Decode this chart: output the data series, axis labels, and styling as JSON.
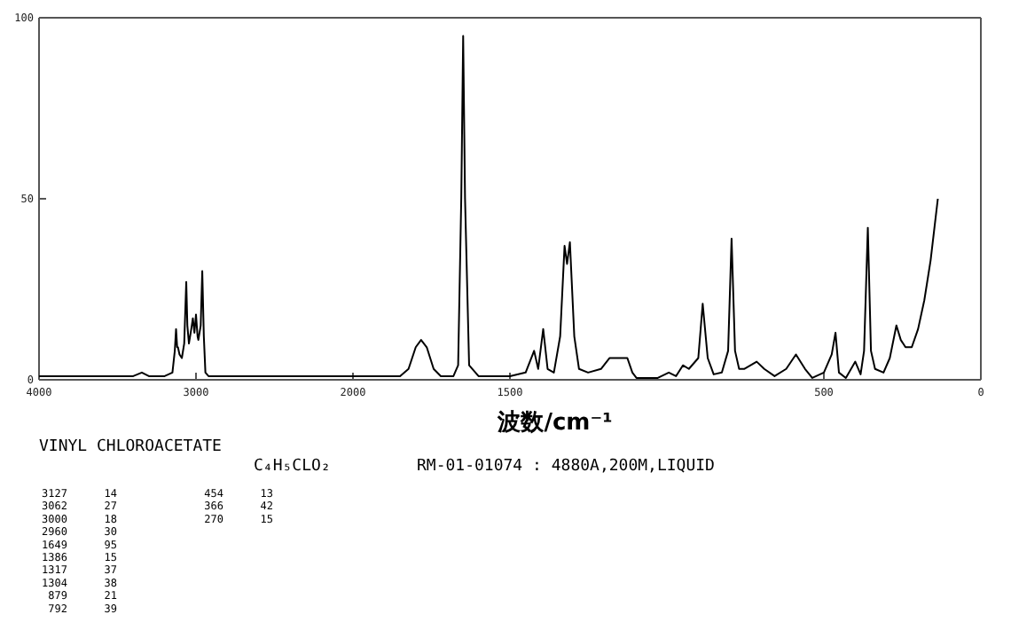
{
  "chart_data": [
    {
      "type": "line",
      "title": "VINYL CHLOROACETATE",
      "subtitle": "C₄H₅CLO₂",
      "xlim": [
        4000,
        2000
      ],
      "ylim": [
        0,
        100
      ],
      "xticks": [
        4000,
        3000,
        2000
      ],
      "yticks": [
        0,
        50,
        100
      ],
      "marker": "none",
      "line_style": "solid",
      "series": [
        {
          "color": "#000000",
          "x": [
            4000,
            3700,
            3400,
            3345,
            3300,
            3200,
            3150,
            3135,
            3127,
            3120,
            3115,
            3105,
            3090,
            3075,
            3062,
            3055,
            3045,
            3030,
            3020,
            3010,
            3000,
            2990,
            2985,
            2970,
            2960,
            2950,
            2940,
            2920,
            2850,
            2600,
            2300,
            2000
          ],
          "values": [
            1,
            1,
            1,
            2,
            1,
            1,
            2,
            8,
            14,
            9,
            9,
            7,
            6,
            10,
            27,
            15,
            10,
            14,
            17,
            13,
            18,
            12,
            11,
            15,
            30,
            12,
            2,
            1,
            1,
            1,
            1,
            1
          ]
        }
      ],
      "annotations": [
        "RM-01-01074 : 4880A,200M,LIQUID",
        "3127 14 454 13",
        "3062 27 366 42",
        "3000 18 270 15",
        "2960 30",
        "1649 95",
        "1386 15",
        "1317 37",
        "1304 38",
        "879 21",
        "792 39"
      ]
    },
    {
      "type": "line",
      "xlabel": "波数/cm⁻¹",
      "xlim": [
        2000,
        0
      ],
      "ylim": [
        0,
        100
      ],
      "xticks": [
        1500,
        500,
        0
      ],
      "tick_labels": "x",
      "marker": "none",
      "line_style": "solid",
      "series": [
        {
          "color": "#000000",
          "x": [
            2000,
            1850,
            1823,
            1800,
            1783,
            1765,
            1743,
            1720,
            1680,
            1665,
            1655,
            1649,
            1643,
            1630,
            1600,
            1500,
            1450,
            1423,
            1410,
            1394,
            1380,
            1360,
            1340,
            1326,
            1318,
            1309,
            1295,
            1280,
            1251,
            1210,
            1183,
            1155,
            1126,
            1110,
            1097,
            1029,
            994,
            971,
            949,
            930,
            900,
            886,
            870,
            851,
            825,
            805,
            794,
            783,
            770,
            754,
            714,
            690,
            657,
            620,
            589,
            560,
            537,
            500,
            475,
            463,
            452,
            430,
            400,
            383,
            372,
            360,
            350,
            337,
            310,
            290,
            269,
            255,
            240,
            220,
            200,
            180,
            160,
            137
          ],
          "values": [
            1,
            1,
            3,
            9,
            11,
            9,
            3,
            1,
            1,
            4,
            50,
            95,
            50,
            4,
            1,
            1,
            2,
            8,
            3,
            14,
            3,
            2,
            12,
            37,
            32,
            38,
            12,
            3,
            2,
            3,
            6,
            6,
            6,
            2,
            0.5,
            0.5,
            2,
            1,
            4,
            3,
            6,
            21,
            6,
            1.5,
            2,
            8,
            39,
            8,
            3,
            3,
            5,
            3,
            1,
            3,
            7,
            3,
            0.5,
            2,
            7,
            13,
            2,
            0.5,
            5,
            1.5,
            8,
            42,
            8,
            3,
            2,
            6,
            15,
            11,
            9,
            9,
            14,
            22,
            33,
            50
          ]
        }
      ]
    }
  ]
}
